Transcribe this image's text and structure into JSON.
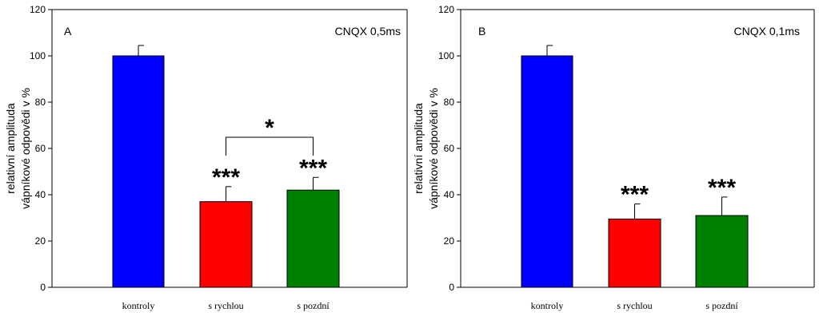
{
  "chart_data": [
    {
      "type": "bar",
      "panel_label": "A",
      "annotation": "CNQX 0,5ms",
      "ylabel_lines": [
        "relativní amplituda",
        "vápníkové odpovědi v %"
      ],
      "ylim": [
        0,
        120
      ],
      "yticks": [
        0,
        20,
        40,
        60,
        80,
        100,
        120
      ],
      "categories": [
        "kontroly",
        "s rychlou",
        "s pozdní"
      ],
      "values": [
        100,
        37,
        42
      ],
      "errors": [
        4.5,
        6.5,
        5.5
      ],
      "colors": [
        "#0000ff",
        "#ff0000",
        "#008000"
      ],
      "significance": [
        "",
        "***",
        "***"
      ],
      "bracket": {
        "from": 1,
        "to": 2,
        "label": "*"
      }
    },
    {
      "type": "bar",
      "panel_label": "B",
      "annotation": "CNQX 0,1ms",
      "ylabel_lines": [
        "relativní amplituda",
        "vápníkové odpovědi v %"
      ],
      "ylim": [
        0,
        120
      ],
      "yticks": [
        0,
        20,
        40,
        60,
        80,
        100,
        120
      ],
      "categories": [
        "kontroly",
        "s rychlou",
        "s pozdní"
      ],
      "values": [
        100,
        29.5,
        31
      ],
      "errors": [
        4.5,
        6.5,
        8
      ],
      "colors": [
        "#0000ff",
        "#ff0000",
        "#008000"
      ],
      "significance": [
        "",
        "***",
        "***"
      ],
      "bracket": null
    }
  ]
}
